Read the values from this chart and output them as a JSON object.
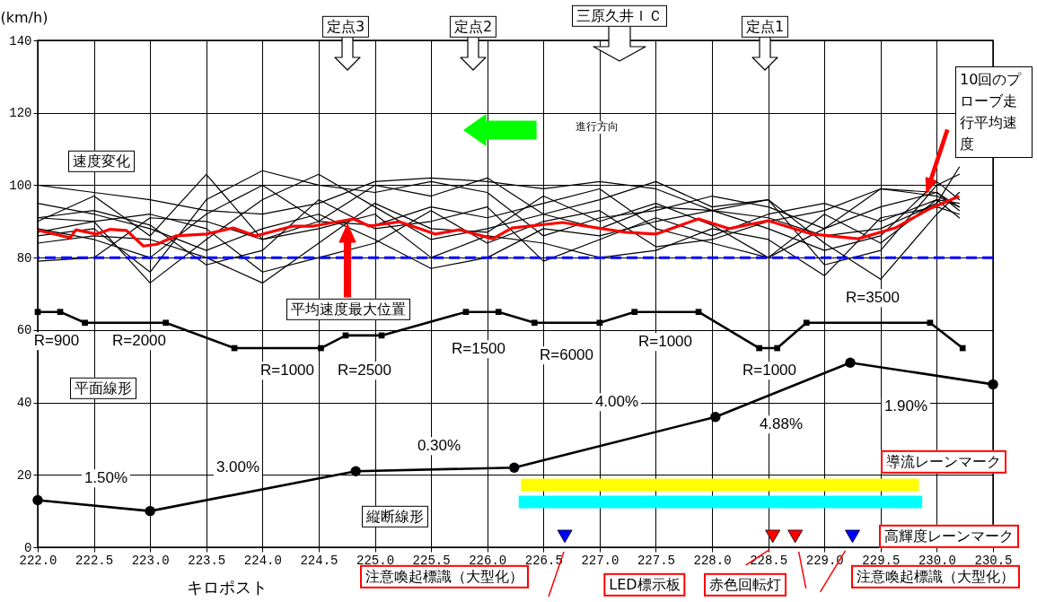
{
  "chart_data": {
    "type": "line",
    "xlabel": "キロポスト",
    "ylabel": "(km/h)",
    "xlim": [
      222.0,
      230.5
    ],
    "xticks": [
      {
        "value": 222,
        "label": "222.0"
      },
      222.5,
      {
        "value": 223,
        "label": "223.0"
      },
      223.5,
      {
        "value": 224,
        "label": "224.0"
      },
      224.5,
      {
        "value": 225,
        "label": "225.0"
      },
      225.5,
      {
        "value": 226,
        "label": "226.0"
      },
      226.5,
      {
        "value": 227,
        "label": "227.0"
      },
      227.5,
      {
        "value": 228,
        "label": "228.0"
      },
      228.5,
      {
        "value": 229,
        "label": "229.0"
      },
      229.5,
      {
        "value": 230,
        "label": "230.0"
      },
      230.5
    ],
    "ylim": [
      0,
      140
    ],
    "yticks": [
      0,
      20,
      40,
      60,
      80,
      100,
      120,
      140
    ],
    "grid": true,
    "series": [
      {
        "color": "#000000",
        "x": [
          222.0,
          222.5,
          223.0,
          223.5,
          224.0,
          224.5,
          225.0,
          225.5,
          226.0,
          226.5,
          227.0,
          227.5,
          228.0,
          228.5,
          229.0,
          229.5,
          230.0,
          230.2
        ],
        "values": [
          100,
          98,
          96,
          93,
          92,
          95,
          101,
          102,
          101,
          99,
          101,
          99,
          93,
          91,
          86,
          88,
          95,
          105
        ]
      },
      {
        "color": "#000000",
        "x": [
          222.0,
          222.5,
          223.0,
          223.5,
          224.0,
          224.5,
          225.0,
          225.5,
          226.0,
          226.5,
          227.0,
          227.5,
          228.0,
          228.5,
          229.0,
          229.5,
          230.0,
          230.2
        ],
        "values": [
          91,
          90,
          73,
          85,
          96,
          103,
          94,
          85,
          88,
          92,
          96,
          101,
          94,
          96,
          84,
          74,
          92,
          98
        ]
      },
      {
        "color": "#000000",
        "x": [
          222.0,
          222.5,
          223.0,
          223.5,
          224.0,
          224.5,
          225.0,
          225.5,
          226.0,
          226.5,
          227.0,
          227.5,
          228.0,
          228.5,
          229.0,
          229.5,
          230.0,
          230.2
        ],
        "values": [
          90,
          97,
          86,
          103,
          85,
          90,
          100,
          97,
          102,
          92,
          88,
          94,
          93,
          96,
          78,
          82,
          100,
          103
        ]
      },
      {
        "color": "#000000",
        "x": [
          222.0,
          222.5,
          223.0,
          223.5,
          224.0,
          224.5,
          225.0,
          225.5,
          226.0,
          226.5,
          227.0,
          227.5,
          228.0,
          228.5,
          229.0,
          229.5,
          230.0,
          230.2
        ],
        "values": [
          88,
          85,
          80,
          92,
          100,
          90,
          89,
          94,
          91,
          95,
          99,
          88,
          84,
          80,
          92,
          84,
          96,
          95
        ]
      },
      {
        "color": "#000000",
        "x": [
          222.0,
          222.5,
          223.0,
          223.5,
          224.0,
          224.5,
          225.0,
          225.5,
          226.0,
          226.5,
          227.0,
          227.5,
          228.0,
          228.5,
          229.0,
          229.5,
          230.0,
          230.2
        ],
        "values": [
          86,
          88,
          76,
          96,
          104,
          100,
          98,
          101,
          98,
          86,
          91,
          93,
          97,
          94,
          88,
          99,
          97,
          94
        ]
      },
      {
        "color": "#000000",
        "x": [
          222.0,
          222.5,
          223.0,
          223.5,
          224.0,
          224.5,
          225.0,
          225.5,
          226.0,
          226.5,
          227.0,
          227.5,
          228.0,
          228.5,
          229.0,
          229.5,
          230.0,
          230.2
        ],
        "values": [
          84,
          86,
          85,
          80,
          73,
          84,
          95,
          88,
          87,
          97,
          90,
          95,
          89,
          80,
          88,
          94,
          98,
          93
        ]
      },
      {
        "color": "#000000",
        "x": [
          222.0,
          222.5,
          223.0,
          223.5,
          224.0,
          224.5,
          225.0,
          225.5,
          226.0,
          226.5,
          227.0,
          227.5,
          228.0,
          228.5,
          229.0,
          229.5,
          230.0,
          230.2
        ],
        "values": [
          79,
          80,
          91,
          90,
          85,
          88,
          92,
          80,
          86,
          84,
          80,
          82,
          88,
          85,
          75,
          91,
          94,
          92
        ]
      },
      {
        "color": "#000000",
        "x": [
          222.0,
          222.5,
          223.0,
          223.5,
          224.0,
          224.5,
          225.0,
          225.5,
          226.0,
          226.5,
          227.0,
          227.5,
          228.0,
          228.5,
          229.0,
          229.5,
          230.0,
          230.2
        ],
        "values": [
          95,
          92,
          88,
          82,
          88,
          92,
          85,
          77,
          80,
          88,
          86,
          90,
          93,
          88,
          82,
          86,
          101,
          96
        ]
      },
      {
        "color": "#000000",
        "x": [
          222.0,
          222.5,
          223.0,
          223.5,
          224.0,
          224.5,
          225.0,
          225.5,
          226.0,
          226.5,
          227.0,
          227.5,
          228.0,
          228.5,
          229.0,
          229.5,
          230.0,
          230.2
        ],
        "values": [
          91,
          93,
          89,
          78,
          82,
          96,
          88,
          90,
          94,
          79,
          85,
          91,
          86,
          92,
          95,
          90,
          96,
          91
        ]
      },
      {
        "color": "#000000",
        "x": [
          222.0,
          222.5,
          223.0,
          223.5,
          224.0,
          224.5,
          225.0,
          225.5,
          226.0,
          226.5,
          227.0,
          227.5,
          228.0,
          228.5,
          229.0,
          229.5,
          230.0,
          230.2
        ],
        "values": [
          87,
          90,
          92,
          88,
          76,
          80,
          84,
          93,
          84,
          90,
          93,
          83,
          85,
          90,
          93,
          99,
          98,
          94
        ]
      },
      {
        "color": "#ff0000",
        "x": [
          222.02,
          222.29,
          222.34,
          222.52,
          222.64,
          222.79,
          222.94,
          223.06,
          223.23,
          223.5,
          223.74,
          223.94,
          224.27,
          224.45,
          224.81,
          224.95,
          225.22,
          225.54,
          225.75,
          226.05,
          226.22,
          226.67,
          227.23,
          227.5,
          227.88,
          228.15,
          228.5,
          228.89,
          229.3,
          229.63,
          229.93,
          230.19
        ],
        "values": [
          87.4,
          85.5,
          87.7,
          86.5,
          87.8,
          87.5,
          83.2,
          83.7,
          86,
          86.5,
          88.2,
          86,
          88.7,
          88.7,
          90.7,
          88.7,
          89.9,
          86.5,
          87.7,
          85.2,
          88.2,
          89.7,
          87,
          86.5,
          90.7,
          88,
          90.2,
          86.5,
          85.2,
          88.2,
          93.4,
          96.8
        ]
      },
      {
        "color": "#000000",
        "marker": "square",
        "x": [
          222.0,
          222.2,
          222.42,
          223.14,
          223.75,
          224.52,
          224.74,
          225.06,
          225.81,
          226.1,
          226.42,
          227.0,
          227.31,
          227.88,
          228.42,
          228.58,
          228.84,
          229.94,
          230.23
        ],
        "values": [
          65,
          65,
          62,
          62,
          55,
          55,
          58.5,
          58.5,
          65,
          65,
          62,
          62,
          65,
          65,
          55,
          55,
          62,
          62,
          55
        ]
      },
      {
        "color": "#000000",
        "marker": "circle",
        "x": [
          222.0,
          223.0,
          224.83,
          226.24,
          228.03,
          229.23,
          230.5
        ],
        "values": [
          13,
          10,
          21,
          22,
          36,
          51,
          45
        ]
      },
      {
        "color": "#ffff00",
        "x": [
          226.3,
          229.84
        ],
        "values": [
          17.2,
          17.2
        ]
      },
      {
        "color": "#00ffff",
        "x": [
          226.28,
          229.87
        ],
        "values": [
          12.5,
          12.5
        ]
      },
      {
        "type": "scatter",
        "marker": "triangle",
        "x": [
          226.69,
          228.54,
          228.74,
          229.25
        ],
        "values": [
          3,
          3,
          3,
          3
        ],
        "colors": [
          "#0000ff",
          "#ff0000",
          "#ff0000",
          "#0000ff"
        ]
      }
    ],
    "ref_lines": [
      {
        "axis": "y",
        "value": 80,
        "color": "#0000ff",
        "line_style": "dashed"
      }
    ],
    "annotations": [
      "速度変化",
      "平面線形",
      "縦断線形",
      "進行方向",
      "定点3",
      "定点2",
      "三原久井ＩＣ",
      "定点1",
      "平均速度最大位置",
      "10回のプローブ走行平均速度",
      "R=900",
      "R=2000",
      "R=1000",
      "R=2500",
      "R=1500",
      "R=6000",
      "R=1000",
      "R=1000",
      "R=3500",
      "1.50%",
      "3.00%",
      "0.30%",
      "4.00%",
      "4.88%",
      "1.90%",
      {
        "text": "導流レーンマーク",
        "x": 229.84,
        "y": 17.2
      },
      {
        "text": "高輝度レーンマーク",
        "x": 229.87,
        "y": 12.5
      },
      "注意喚起標識（大型化）",
      "LED標示板",
      {
        "text": "赤色回転灯",
        "x": 228.54,
        "y": 3
      },
      {
        "text": "注意喚起標識（大型化）",
        "x": 229.25,
        "y": 3
      }
    ]
  }
}
